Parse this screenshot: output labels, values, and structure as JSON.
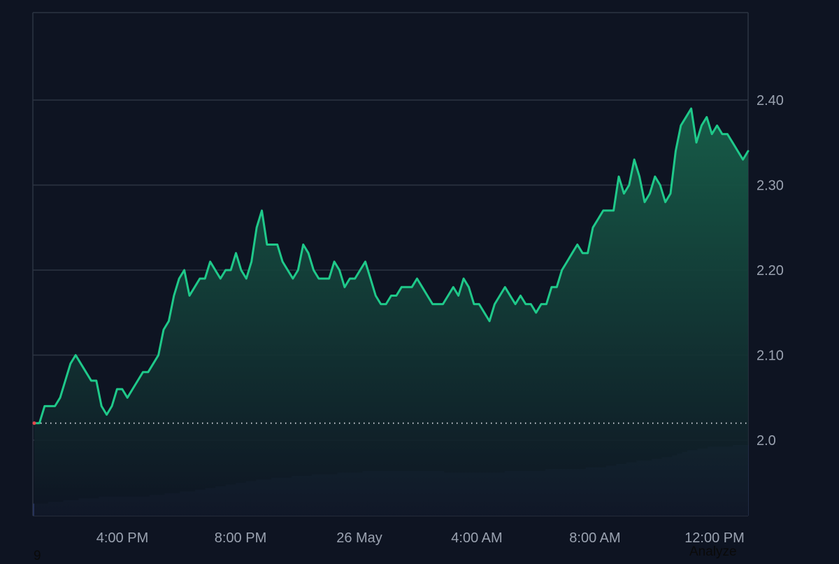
{
  "colors": {
    "background": "#0e1422",
    "grid": "#2c3442",
    "line": "#1fc98a",
    "area_top": "#17604a",
    "area_bottom": "#0e1422",
    "volume": "#27335a",
    "baseline": "#c8ccd4",
    "start_marker": "#e5484d",
    "tick_text": "#9aa2b0"
  },
  "footer": {
    "left": "9",
    "right": "Analyze"
  },
  "chart_data": {
    "type": "area",
    "title": "",
    "xlabel": "",
    "ylabel": "",
    "x_ticks": [
      "4:00 PM",
      "8:00 PM",
      "26 May",
      "4:00 AM",
      "8:00 AM",
      "12:00 PM"
    ],
    "y_ticks": [
      "2.0",
      "2.10",
      "2.20",
      "2.30",
      "2.40"
    ],
    "y_tick_values": [
      2.0,
      2.1,
      2.2,
      2.3,
      2.4
    ],
    "ylim": [
      2.0,
      2.5
    ],
    "y_axis_position": "right",
    "grid": true,
    "baseline_value": 2.02,
    "series": [
      {
        "values": [
          2.02,
          2.02,
          2.04,
          2.04,
          2.04,
          2.05,
          2.07,
          2.09,
          2.1,
          2.09,
          2.08,
          2.07,
          2.07,
          2.04,
          2.03,
          2.04,
          2.06,
          2.06,
          2.05,
          2.06,
          2.07,
          2.08,
          2.08,
          2.09,
          2.1,
          2.13,
          2.14,
          2.17,
          2.19,
          2.2,
          2.17,
          2.18,
          2.19,
          2.19,
          2.21,
          2.2,
          2.19,
          2.2,
          2.2,
          2.22,
          2.2,
          2.19,
          2.21,
          2.25,
          2.27,
          2.23,
          2.23,
          2.23,
          2.21,
          2.2,
          2.19,
          2.2,
          2.23,
          2.22,
          2.2,
          2.19,
          2.19,
          2.19,
          2.21,
          2.2,
          2.18,
          2.19,
          2.19,
          2.2,
          2.21,
          2.19,
          2.17,
          2.16,
          2.16,
          2.17,
          2.17,
          2.18,
          2.18,
          2.18,
          2.19,
          2.18,
          2.17,
          2.16,
          2.16,
          2.16,
          2.17,
          2.18,
          2.17,
          2.19,
          2.18,
          2.16,
          2.16,
          2.15,
          2.14,
          2.16,
          2.17,
          2.18,
          2.17,
          2.16,
          2.17,
          2.16,
          2.16,
          2.15,
          2.16,
          2.16,
          2.18,
          2.18,
          2.2,
          2.21,
          2.22,
          2.23,
          2.22,
          2.22,
          2.25,
          2.26,
          2.27,
          2.27,
          2.27,
          2.31,
          2.29,
          2.3,
          2.33,
          2.31,
          2.28,
          2.29,
          2.31,
          2.3,
          2.28,
          2.29,
          2.34,
          2.37,
          2.38,
          2.39,
          2.35,
          2.37,
          2.38,
          2.36,
          2.37,
          2.36,
          2.36,
          2.35,
          2.34,
          2.33,
          2.34
        ]
      }
    ],
    "volume": [
      3,
      3,
      3,
      4,
      4,
      4,
      5,
      5,
      5,
      6,
      6,
      6,
      6,
      7,
      7,
      7,
      7,
      7,
      7,
      7,
      7,
      7,
      7,
      8,
      8,
      8,
      9,
      9,
      9,
      10,
      10,
      10,
      11,
      11,
      12,
      12,
      13,
      13,
      14,
      14,
      15,
      15,
      16,
      16,
      17,
      17,
      17,
      18,
      18,
      18,
      18,
      19,
      19,
      19,
      19,
      20,
      20,
      20,
      20,
      20,
      21,
      21,
      21,
      21,
      21,
      22,
      22,
      22,
      22,
      22,
      22,
      22,
      22,
      22,
      22,
      22,
      22,
      22,
      22,
      22,
      22,
      21,
      21,
      21,
      21,
      21,
      21,
      21,
      21,
      21,
      21,
      21,
      21,
      22,
      22,
      22,
      22,
      22,
      22,
      22,
      22,
      23,
      23,
      23,
      23,
      23,
      23,
      23,
      23,
      24,
      24,
      24,
      24,
      25,
      25,
      26,
      26,
      27,
      27,
      28,
      28,
      28,
      29,
      29,
      30,
      30,
      31,
      32,
      33,
      34,
      34,
      35,
      35,
      36,
      36,
      36,
      36,
      36,
      37,
      37,
      37
    ]
  }
}
